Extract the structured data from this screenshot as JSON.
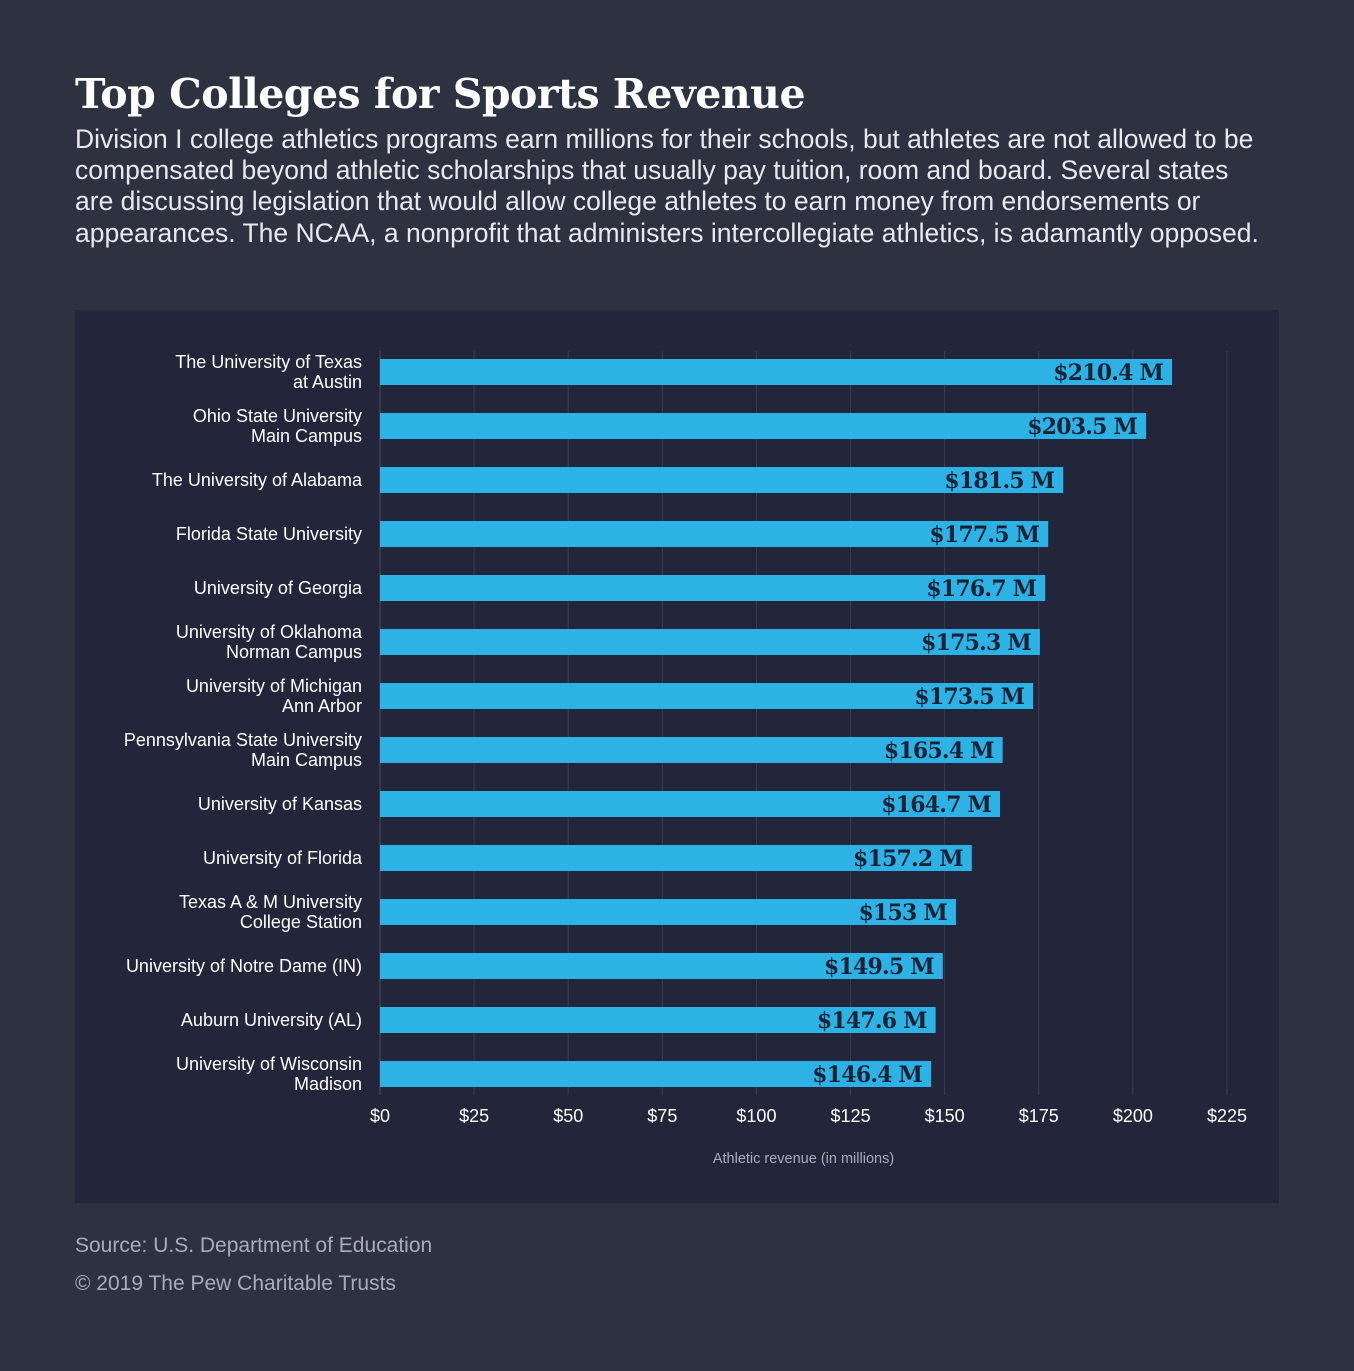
{
  "header": {
    "title": "Top Colleges for Sports Revenue",
    "subtitle": "Division I college athletics programs earn millions for their schools, but athletes are not allowed to be compensated beyond athletic scholarships that usually pay tuition, room and board. Several states are discussing legislation that would allow college athletes to earn money from endorsements or appearances. The NCAA, a nonprofit that administers intercollegiate athletics, is adamantly opposed."
  },
  "chart_data": {
    "type": "bar",
    "orientation": "horizontal",
    "categories": [
      [
        "The University of Texas",
        "at Austin"
      ],
      [
        "Ohio State University",
        "Main Campus"
      ],
      [
        "The University of Alabama"
      ],
      [
        "Florida State University"
      ],
      [
        "University of Georgia"
      ],
      [
        "University of Oklahoma",
        "Norman Campus"
      ],
      [
        "University of Michigan",
        "Ann Arbor"
      ],
      [
        "Pennsylvania State University",
        "Main Campus"
      ],
      [
        "University of Kansas"
      ],
      [
        "University of Florida"
      ],
      [
        "Texas A & M University",
        "College Station"
      ],
      [
        "University of Notre Dame (IN)"
      ],
      [
        "Auburn University (AL)"
      ],
      [
        "University of Wisconsin",
        "Madison"
      ]
    ],
    "values": [
      210.4,
      203.5,
      181.5,
      177.5,
      176.7,
      175.3,
      173.5,
      165.4,
      164.7,
      157.2,
      153,
      149.5,
      147.6,
      146.4
    ],
    "data_labels": [
      "$210.4 M",
      "$203.5 M",
      "$181.5 M",
      "$177.5 M",
      "$176.7 M",
      "$175.3 M",
      "$173.5 M",
      "$165.4 M",
      "$164.7 M",
      "$157.2 M",
      "$153 M",
      "$149.5 M",
      "$147.6 M",
      "$146.4 M"
    ],
    "xlim": [
      0,
      225
    ],
    "xticks": [
      0,
      25,
      50,
      75,
      100,
      125,
      150,
      175,
      200,
      225
    ],
    "xtick_labels": [
      "$0",
      "$25",
      "$50",
      "$75",
      "$100",
      "$125",
      "$150",
      "$175",
      "$200",
      "$225"
    ],
    "xlabel": "Athletic revenue (in millions)",
    "ylabel": "",
    "grid": true,
    "colors": {
      "bar": "#2db2e6",
      "bar_label": "#1c2236",
      "grid": "#3a3d50",
      "panel_bg": "#23263a",
      "page_bg": "#2e3140"
    }
  },
  "footer": {
    "source": "Source: U.S. Department of Education",
    "copyright": "© 2019 The Pew Charitable Trusts"
  }
}
